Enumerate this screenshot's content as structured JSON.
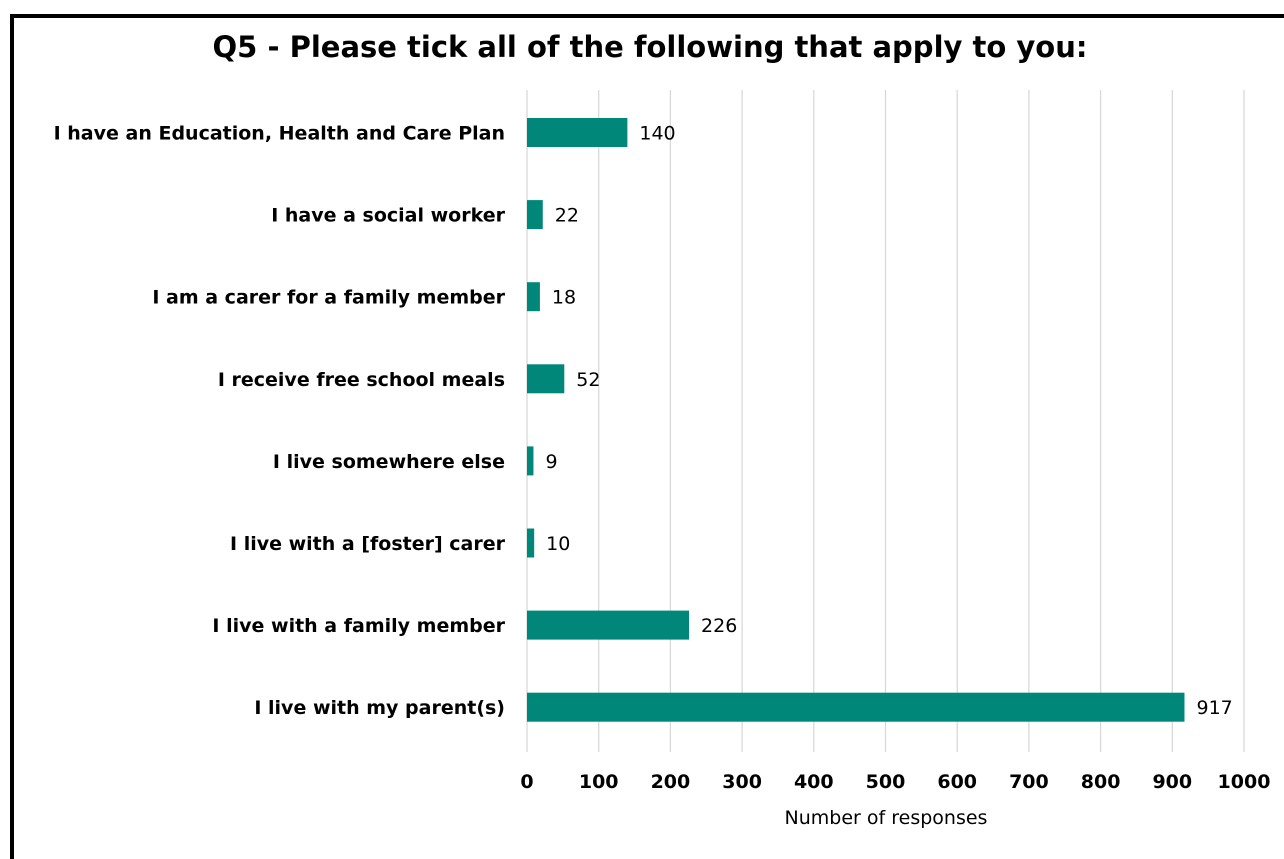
{
  "chart_data": {
    "type": "bar",
    "orientation": "horizontal",
    "title": "Q5 - Please tick all of the following that apply to you:",
    "xlabel": "Number of responses",
    "ylabel": "",
    "xlim": [
      0,
      1000
    ],
    "ticks": [
      "0",
      "100",
      "200",
      "300",
      "400",
      "500",
      "600",
      "700",
      "800",
      "900",
      "1000"
    ],
    "grid": true,
    "color": "#00877A",
    "categories": [
      "I have an Education, Health and Care Plan",
      "I have a social worker",
      "I am a carer for a family member",
      "I receive free school meals",
      "I live somewhere else",
      "I live with a [foster] carer",
      "I live with a family member",
      "I live with my parent(s)"
    ],
    "values": [
      140,
      22,
      18,
      52,
      9,
      10,
      226,
      917
    ]
  }
}
